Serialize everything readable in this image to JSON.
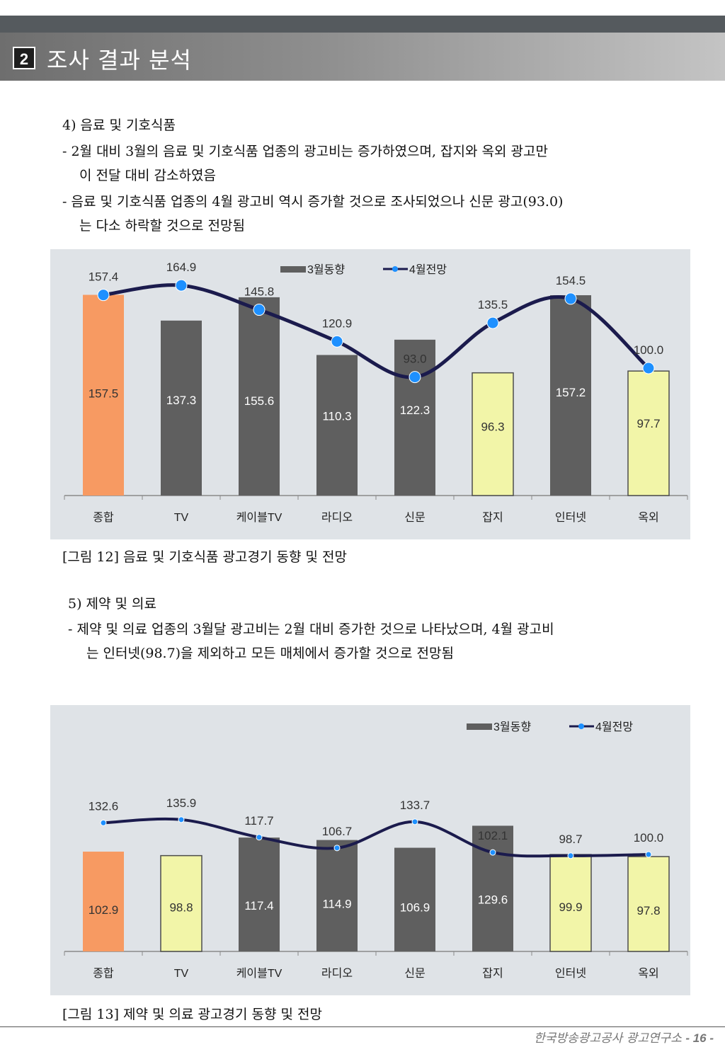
{
  "section": {
    "number": "2",
    "title": "조사 결과 분석"
  },
  "s4": {
    "heading": "4) 음료 및 기호식품",
    "b1_l1": "-  2월 대비 3월의 음료 및 기호식품 업종의 광고비는 증가하였으며, 잡지와  옥외 광고만",
    "b1_l2": "이 전달 대비 감소하였음",
    "b2_l1": "-  음료 및 기호식품 업종의 4월 광고비 역시 증가할 것으로 조사되었으나 신문 광고(93.0)",
    "b2_l2": "는 다소 하락할 것으로 전망됨",
    "caption": "[그림 12] 음료 및 기호식품 광고경기 동향 및 전망"
  },
  "s5": {
    "heading": "5) 제약 및 의료",
    "b1_l1": "-  제약 및 의료 업종의 3월달 광고비는 2월 대비 증가한 것으로 나타났으며, 4월 광고비",
    "b1_l2": "는 인터넷(98.7)을 제외하고 모든 매체에서 증가할 것으로 전망됨",
    "caption": "[그림 13] 제약 및 의료 광고경기 동향 및 전망"
  },
  "footer": {
    "org": "한국방송광고공사 광고연구소",
    "page": "- 16 -"
  },
  "colors": {
    "bar_default": "#5f5f5f",
    "bar_total": "#f79a62",
    "bar_below100": "#f2f5a8",
    "line": "#1b1b4d",
    "marker": "#1e90ff",
    "chart_bg": "#dfe3e7"
  },
  "chart_data": [
    {
      "type": "bar",
      "categories": [
        "종합",
        "TV",
        "케이블TV",
        "라디오",
        "신문",
        "잡지",
        "인터넷",
        "옥외"
      ],
      "series": [
        {
          "name": "3월동향",
          "type": "bar",
          "values": [
            157.5,
            137.3,
            155.6,
            110.3,
            122.3,
            96.3,
            157.2,
            97.7
          ]
        },
        {
          "name": "4월전망",
          "type": "line",
          "values": [
            157.4,
            164.9,
            145.8,
            120.9,
            93.0,
            135.5,
            154.5,
            100.0
          ]
        }
      ],
      "legend": "top-center"
    },
    {
      "type": "bar",
      "categories": [
        "종합",
        "TV",
        "케이블TV",
        "라디오",
        "신문",
        "잡지",
        "인터넷",
        "옥외"
      ],
      "series": [
        {
          "name": "3월동향",
          "type": "bar",
          "values": [
            102.9,
            98.8,
            117.4,
            114.9,
            106.9,
            129.6,
            99.9,
            97.8
          ]
        },
        {
          "name": "4월전망",
          "type": "line",
          "values": [
            132.6,
            135.9,
            117.7,
            106.7,
            133.7,
            102.1,
            98.7,
            100.0
          ]
        }
      ],
      "legend": "top-right"
    }
  ]
}
